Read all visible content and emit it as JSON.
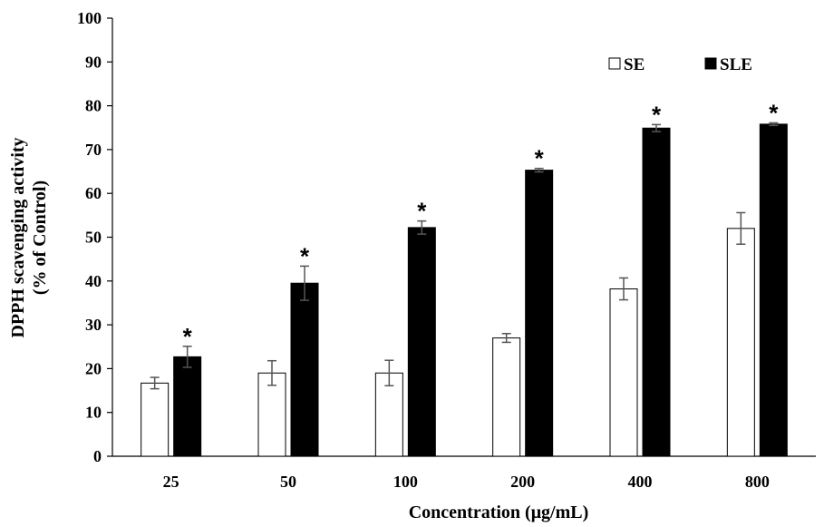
{
  "chart_data": {
    "type": "bar",
    "title": "",
    "xlabel": "Concentration (μg/mL)",
    "ylabel_line1": "DPPH scavenging activity",
    "ylabel_line2": "(% of Control)",
    "ylim": [
      0,
      100
    ],
    "ytick_step": 10,
    "yticks": [
      "0",
      "10",
      "20",
      "30",
      "40",
      "50",
      "60",
      "70",
      "80",
      "90",
      "100"
    ],
    "categories": [
      "25",
      "50",
      "100",
      "200",
      "400",
      "800"
    ],
    "series": [
      {
        "name": "SE",
        "fill": "#ffffff",
        "values": [
          16.7,
          19.0,
          19.0,
          27.0,
          38.2,
          52.0
        ],
        "errors": [
          1.3,
          2.8,
          2.9,
          1.0,
          2.5,
          3.6
        ],
        "significance": [
          "",
          "",
          "",
          "",
          "",
          ""
        ]
      },
      {
        "name": "SLE",
        "fill": "#000000",
        "values": [
          22.7,
          39.5,
          52.2,
          65.3,
          74.9,
          75.8
        ],
        "errors": [
          2.4,
          3.9,
          1.5,
          0.4,
          0.8,
          0.3
        ],
        "significance": [
          "*",
          "*",
          "*",
          "*",
          "*",
          "*"
        ]
      }
    ],
    "legend": {
      "position": "top-right",
      "entries": [
        "SE",
        "SLE"
      ]
    },
    "grid": false
  }
}
